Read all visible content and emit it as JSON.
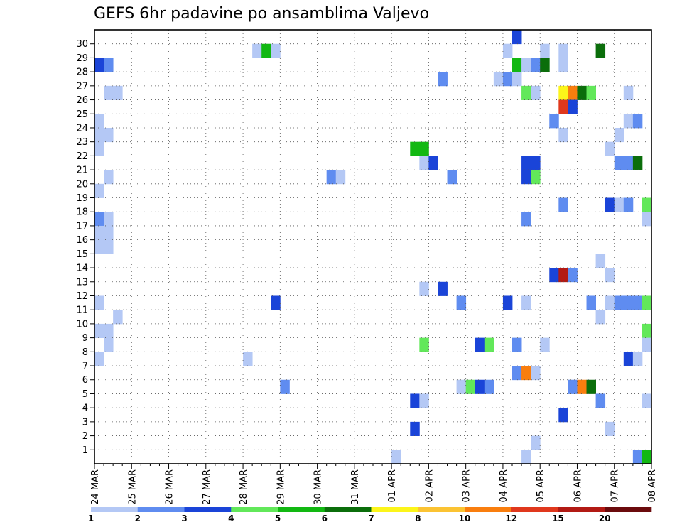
{
  "chart_data": {
    "type": "heatmap",
    "title": "GEFS 6hr padavine po ansamblima Valjevo",
    "ylabel": "",
    "xlabel": "",
    "x_ticks": [
      "24 MAR",
      "25 MAR",
      "26 MAR",
      "27 MAR",
      "28 MAR",
      "29 MAR",
      "30 MAR",
      "31 MAR",
      "01 APR",
      "02 APR",
      "03 APR",
      "04 APR",
      "05 APR",
      "06 APR",
      "07 APR",
      "08 APR"
    ],
    "y_ticks": [
      "1",
      "2",
      "3",
      "4",
      "5",
      "6",
      "7",
      "8",
      "9",
      "10",
      "11",
      "12",
      "13",
      "14",
      "15",
      "16",
      "17",
      "18",
      "19",
      "20",
      "21",
      "22",
      "23",
      "24",
      "25",
      "26",
      "27",
      "28",
      "29",
      "30"
    ],
    "ylim": [
      0,
      30
    ],
    "x_steps": 60,
    "grid": true,
    "colorbar": {
      "labels": [
        "1",
        "2",
        "3",
        "4",
        "5",
        "6",
        "7",
        "8",
        "10",
        "12",
        "15",
        "20"
      ],
      "colors": [
        "#b4c8f5",
        "#5f8cf0",
        "#1a44d8",
        "#62e85a",
        "#12b812",
        "#0b6e0b",
        "#fcf51a",
        "#fbc333",
        "#f97e0e",
        "#e0381d",
        "#b21a14",
        "#6b0b0d"
      ]
    },
    "cells": [
      {
        "t": 0,
        "m": 28,
        "c": 2
      },
      {
        "t": 1,
        "m": 28,
        "c": 1
      },
      {
        "t": 1,
        "m": 26,
        "c": 0
      },
      {
        "t": 2,
        "m": 26,
        "c": 0
      },
      {
        "t": 0,
        "m": 24,
        "c": 0
      },
      {
        "t": 0,
        "m": 23,
        "c": 0
      },
      {
        "t": 1,
        "m": 23,
        "c": 0
      },
      {
        "t": 0,
        "m": 22,
        "c": 0
      },
      {
        "t": 1,
        "m": 20,
        "c": 0
      },
      {
        "t": 0,
        "m": 19,
        "c": 0
      },
      {
        "t": 0,
        "m": 17,
        "c": 1
      },
      {
        "t": 1,
        "m": 17,
        "c": 0
      },
      {
        "t": 0,
        "m": 16,
        "c": 0
      },
      {
        "t": 1,
        "m": 16,
        "c": 0
      },
      {
        "t": 0,
        "m": 15,
        "c": 0
      },
      {
        "t": 1,
        "m": 15,
        "c": 0
      },
      {
        "t": 0,
        "m": 11,
        "c": 0
      },
      {
        "t": 2,
        "m": 10,
        "c": 0
      },
      {
        "t": 0,
        "m": 9,
        "c": 0
      },
      {
        "t": 1,
        "m": 9,
        "c": 0
      },
      {
        "t": 1,
        "m": 8,
        "c": 0
      },
      {
        "t": 0,
        "m": 7,
        "c": 0
      },
      {
        "t": 17,
        "m": 29,
        "c": 0
      },
      {
        "t": 18,
        "m": 29,
        "c": 4
      },
      {
        "t": 19,
        "m": 29,
        "c": 0
      },
      {
        "t": 16,
        "m": 7,
        "c": 0
      },
      {
        "t": 19,
        "m": 11,
        "c": 2
      },
      {
        "t": 20,
        "m": 5,
        "c": 1
      },
      {
        "t": 25,
        "m": 20,
        "c": 1
      },
      {
        "t": 26,
        "m": 20,
        "c": 0
      },
      {
        "t": 32,
        "m": 0,
        "c": 0
      },
      {
        "t": 34,
        "m": 22,
        "c": 4
      },
      {
        "t": 35,
        "m": 22,
        "c": 4
      },
      {
        "t": 35,
        "m": 21,
        "c": 0
      },
      {
        "t": 36,
        "m": 21,
        "c": 2
      },
      {
        "t": 38,
        "m": 20,
        "c": 1
      },
      {
        "t": 37,
        "m": 27,
        "c": 1
      },
      {
        "t": 35,
        "m": 12,
        "c": 0
      },
      {
        "t": 37,
        "m": 12,
        "c": 2
      },
      {
        "t": 35,
        "m": 8,
        "c": 3
      },
      {
        "t": 34,
        "m": 4,
        "c": 2
      },
      {
        "t": 35,
        "m": 4,
        "c": 0
      },
      {
        "t": 34,
        "m": 2,
        "c": 2
      },
      {
        "t": 39,
        "m": 11,
        "c": 1
      },
      {
        "t": 39,
        "m": 5,
        "c": 0
      },
      {
        "t": 40,
        "m": 5,
        "c": 3
      },
      {
        "t": 41,
        "m": 5,
        "c": 2
      },
      {
        "t": 42,
        "m": 5,
        "c": 1
      },
      {
        "t": 41,
        "m": 8,
        "c": 2
      },
      {
        "t": 42,
        "m": 8,
        "c": 3
      },
      {
        "t": 43,
        "m": 27,
        "c": 0
      },
      {
        "t": 44,
        "m": 27,
        "c": 1
      },
      {
        "t": 45,
        "m": 27,
        "c": 0
      },
      {
        "t": 44,
        "m": 29,
        "c": 0
      },
      {
        "t": 45,
        "m": 30,
        "c": 2
      },
      {
        "t": 45,
        "m": 28,
        "c": 4
      },
      {
        "t": 46,
        "m": 28,
        "c": 0
      },
      {
        "t": 47,
        "m": 28,
        "c": 1
      },
      {
        "t": 48,
        "m": 28,
        "c": 5
      },
      {
        "t": 46,
        "m": 26,
        "c": 3
      },
      {
        "t": 47,
        "m": 26,
        "c": 0
      },
      {
        "t": 46,
        "m": 21,
        "c": 2
      },
      {
        "t": 47,
        "m": 21,
        "c": 2
      },
      {
        "t": 46,
        "m": 20,
        "c": 2
      },
      {
        "t": 47,
        "m": 20,
        "c": 3
      },
      {
        "t": 46,
        "m": 17,
        "c": 1
      },
      {
        "t": 44,
        "m": 11,
        "c": 2
      },
      {
        "t": 46,
        "m": 11,
        "c": 0
      },
      {
        "t": 45,
        "m": 8,
        "c": 1
      },
      {
        "t": 48,
        "m": 8,
        "c": 0
      },
      {
        "t": 45,
        "m": 6,
        "c": 1
      },
      {
        "t": 46,
        "m": 6,
        "c": 8
      },
      {
        "t": 47,
        "m": 6,
        "c": 0
      },
      {
        "t": 47,
        "m": 1,
        "c": 0
      },
      {
        "t": 46,
        "m": 0,
        "c": 0
      },
      {
        "t": 48,
        "m": 29,
        "c": 0
      },
      {
        "t": 50,
        "m": 29,
        "c": 0
      },
      {
        "t": 50,
        "m": 28,
        "c": 0
      },
      {
        "t": 50,
        "m": 26,
        "c": 6
      },
      {
        "t": 51,
        "m": 26,
        "c": 8
      },
      {
        "t": 52,
        "m": 26,
        "c": 5
      },
      {
        "t": 53,
        "m": 26,
        "c": 3
      },
      {
        "t": 50,
        "m": 25,
        "c": 9
      },
      {
        "t": 51,
        "m": 25,
        "c": 2
      },
      {
        "t": 49,
        "m": 24,
        "c": 1
      },
      {
        "t": 50,
        "m": 23,
        "c": 0
      },
      {
        "t": 50,
        "m": 18,
        "c": 1
      },
      {
        "t": 49,
        "m": 13,
        "c": 2
      },
      {
        "t": 50,
        "m": 13,
        "c": 10
      },
      {
        "t": 51,
        "m": 13,
        "c": 1
      },
      {
        "t": 50,
        "m": 3,
        "c": 2
      },
      {
        "t": 51,
        "m": 5,
        "c": 1
      },
      {
        "t": 52,
        "m": 5,
        "c": 8
      },
      {
        "t": 53,
        "m": 5,
        "c": 5
      },
      {
        "t": 53,
        "m": 11,
        "c": 1
      },
      {
        "t": 54,
        "m": 29,
        "c": 5
      },
      {
        "t": 54,
        "m": 14,
        "c": 0
      },
      {
        "t": 54,
        "m": 10,
        "c": 0
      },
      {
        "t": 54,
        "m": 4,
        "c": 1
      },
      {
        "t": 55,
        "m": 22,
        "c": 0
      },
      {
        "t": 55,
        "m": 13,
        "c": 0
      },
      {
        "t": 55,
        "m": 2,
        "c": 0
      },
      {
        "t": 55,
        "m": 18,
        "c": 2
      },
      {
        "t": 56,
        "m": 18,
        "c": 0
      },
      {
        "t": 57,
        "m": 18,
        "c": 1
      },
      {
        "t": 59,
        "m": 18,
        "c": 3
      },
      {
        "t": 56,
        "m": 23,
        "c": 0
      },
      {
        "t": 56,
        "m": 21,
        "c": 1
      },
      {
        "t": 57,
        "m": 21,
        "c": 1
      },
      {
        "t": 58,
        "m": 21,
        "c": 5
      },
      {
        "t": 57,
        "m": 26,
        "c": 0
      },
      {
        "t": 57,
        "m": 24,
        "c": 0
      },
      {
        "t": 58,
        "m": 24,
        "c": 1
      },
      {
        "t": 55,
        "m": 11,
        "c": 0
      },
      {
        "t": 56,
        "m": 11,
        "c": 1
      },
      {
        "t": 57,
        "m": 11,
        "c": 1
      },
      {
        "t": 58,
        "m": 11,
        "c": 1
      },
      {
        "t": 59,
        "m": 11,
        "c": 3
      },
      {
        "t": 57,
        "m": 7,
        "c": 2
      },
      {
        "t": 58,
        "m": 7,
        "c": 0
      },
      {
        "t": 59,
        "m": 9,
        "c": 3
      },
      {
        "t": 59,
        "m": 17,
        "c": 0
      },
      {
        "t": 59,
        "m": 8,
        "c": 0
      },
      {
        "t": 59,
        "m": 4,
        "c": 0
      },
      {
        "t": 58,
        "m": 0,
        "c": 1
      },
      {
        "t": 59,
        "m": 0,
        "c": 4
      }
    ]
  }
}
